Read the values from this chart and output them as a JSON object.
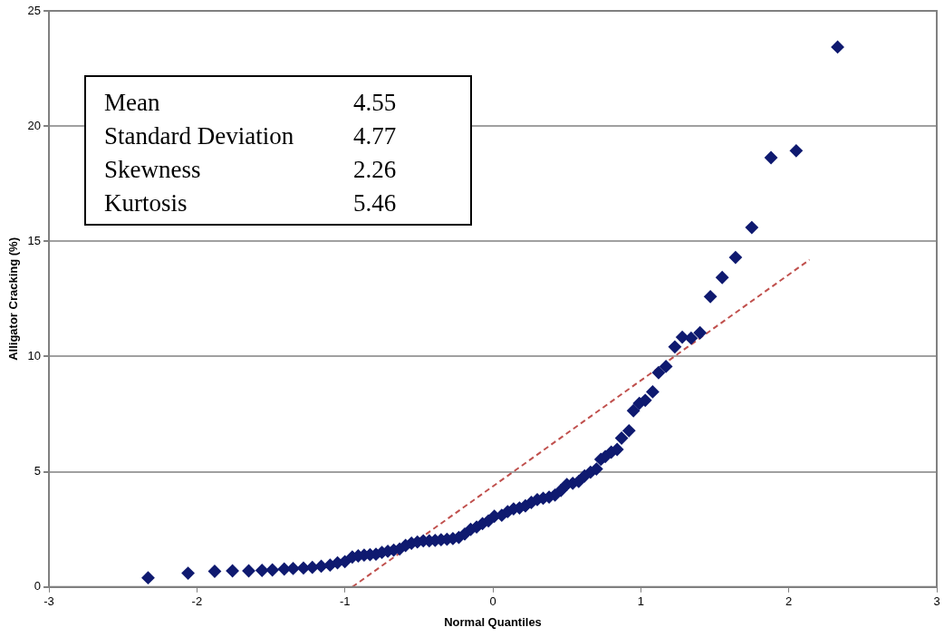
{
  "chart_data": {
    "type": "scatter",
    "xlabel": "Normal Quantiles",
    "ylabel": "Alligator Cracking (%)",
    "xlim": [
      -3,
      3
    ],
    "xticks": [
      -3,
      -2,
      -1,
      0,
      1,
      2,
      3
    ],
    "ylim": [
      0,
      25
    ],
    "yticks": [
      0,
      5,
      10,
      15,
      20,
      25
    ],
    "grid": "y",
    "annotations": [
      "Mean 4.55",
      "Standard Deviation 4.77",
      "Skewness 2.26",
      "Kurtosis 5.46"
    ],
    "series": [
      {
        "type": "scatter",
        "color": "#0f1a70",
        "marker": "diamond",
        "x": [
          -2.33,
          -2.06,
          -1.88,
          -1.76,
          -1.65,
          -1.56,
          -1.49,
          -1.41,
          -1.35,
          -1.28,
          -1.22,
          -1.16,
          -1.1,
          -1.05,
          -1.0,
          -0.95,
          -0.91,
          -0.87,
          -0.83,
          -0.79,
          -0.75,
          -0.71,
          -0.67,
          -0.63,
          -0.59,
          -0.55,
          -0.51,
          -0.47,
          -0.43,
          -0.39,
          -0.35,
          -0.31,
          -0.27,
          -0.23,
          -0.19,
          -0.15,
          -0.11,
          -0.07,
          -0.03,
          0.01,
          0.06,
          0.1,
          0.14,
          0.18,
          0.22,
          0.26,
          0.3,
          0.34,
          0.38,
          0.42,
          0.46,
          0.5,
          0.54,
          0.58,
          0.62,
          0.66,
          0.7,
          0.73,
          0.76,
          0.8,
          0.84,
          0.87,
          0.92,
          0.95,
          0.99,
          1.03,
          1.08,
          1.12,
          1.17,
          1.23,
          1.28,
          1.34,
          1.4,
          1.47,
          1.55,
          1.64,
          1.75,
          1.88,
          2.05,
          2.33
        ],
        "values": [
          0.4,
          0.6,
          0.68,
          0.7,
          0.7,
          0.72,
          0.74,
          0.78,
          0.8,
          0.82,
          0.85,
          0.9,
          0.95,
          1.05,
          1.1,
          1.3,
          1.35,
          1.38,
          1.4,
          1.42,
          1.5,
          1.55,
          1.6,
          1.65,
          1.8,
          1.9,
          1.95,
          2.0,
          2.0,
          2.02,
          2.05,
          2.07,
          2.1,
          2.15,
          2.3,
          2.5,
          2.6,
          2.75,
          2.87,
          3.07,
          3.11,
          3.27,
          3.39,
          3.43,
          3.52,
          3.67,
          3.79,
          3.85,
          3.9,
          3.99,
          4.19,
          4.45,
          4.5,
          4.58,
          4.82,
          4.98,
          5.12,
          5.54,
          5.66,
          5.85,
          5.97,
          6.46,
          6.78,
          7.65,
          7.97,
          8.1,
          8.47,
          9.3,
          9.57,
          10.42,
          10.84,
          10.8,
          11.03,
          12.6,
          13.43,
          14.3,
          15.6,
          18.63,
          18.93,
          23.43
        ]
      },
      {
        "type": "line",
        "color": "#c0504d",
        "line_style": "dashed",
        "marker": "none",
        "x": [
          -0.95,
          2.14
        ],
        "values": [
          0,
          14.2
        ]
      }
    ]
  }
}
